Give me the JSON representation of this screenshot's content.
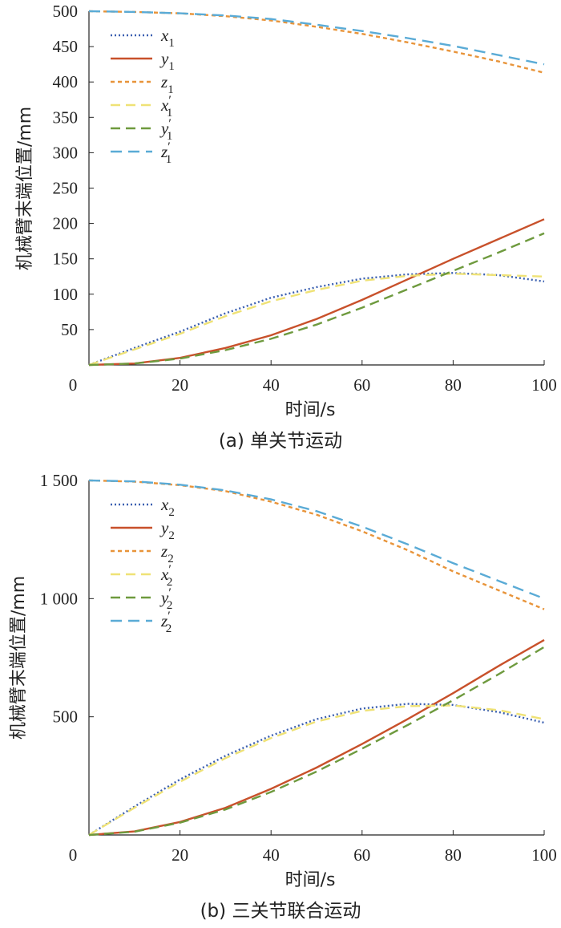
{
  "colors": {
    "x": "#3a5fb0",
    "y": "#c8512b",
    "z": "#e8943a",
    "xp": "#efe276",
    "yp": "#6e9a3e",
    "zp": "#5aabd6"
  },
  "chart_data": [
    {
      "type": "line",
      "caption": "(a)  单关节运动",
      "xlabel": "时间/s",
      "ylabel": "机械臂末端位置/mm",
      "xlim": [
        0,
        100
      ],
      "ylim": [
        0,
        500
      ],
      "xticks": [
        0,
        20,
        40,
        60,
        80,
        100
      ],
      "xtick_labels": [
        "0",
        "20",
        "40",
        "60",
        "80",
        "100"
      ],
      "yticks": [
        50,
        100,
        150,
        200,
        250,
        300,
        350,
        400,
        450,
        500
      ],
      "ytick_labels": [
        "50",
        "100",
        "150",
        "200",
        "250",
        "300",
        "350",
        "400",
        "450",
        "500"
      ],
      "legend_position": "top-left",
      "x": [
        0,
        10,
        20,
        30,
        40,
        50,
        60,
        70,
        80,
        90,
        100
      ],
      "series": [
        {
          "name": "x1",
          "base": "x",
          "sub": "1",
          "prime": false,
          "color_key": "x",
          "dash": "2,3",
          "values": [
            0,
            24,
            47,
            73,
            95,
            110,
            122,
            128,
            130,
            127,
            118
          ]
        },
        {
          "name": "y1",
          "base": "y",
          "sub": "1",
          "prime": false,
          "color_key": "y",
          "dash": "",
          "values": [
            0,
            2,
            10,
            24,
            42,
            65,
            92,
            121,
            150,
            178,
            206
          ]
        },
        {
          "name": "z1",
          "base": "z",
          "sub": "1",
          "prime": false,
          "color_key": "z",
          "dash": "5,4",
          "values": [
            500,
            499,
            497,
            493,
            487,
            478,
            468,
            456,
            443,
            429,
            413
          ]
        },
        {
          "name": "x'1",
          "base": "x",
          "sub": "1",
          "prime": true,
          "color_key": "xp",
          "dash": "12,7",
          "values": [
            0,
            22,
            44,
            69,
            90,
            106,
            119,
            126,
            129,
            127,
            125
          ]
        },
        {
          "name": "y'1",
          "base": "y",
          "sub": "1",
          "prime": true,
          "color_key": "yp",
          "dash": "12,7",
          "values": [
            0,
            2,
            9,
            21,
            37,
            57,
            81,
            107,
            133,
            159,
            186
          ]
        },
        {
          "name": "z'1",
          "base": "z",
          "sub": "1",
          "prime": true,
          "color_key": "zp",
          "dash": "14,8",
          "values": [
            500,
            499,
            497,
            494,
            489,
            481,
            472,
            462,
            451,
            438,
            425
          ]
        }
      ]
    },
    {
      "type": "line",
      "caption": "(b)  三关节联合运动",
      "xlabel": "时间/s",
      "ylabel": "机械臂末端位置/mm",
      "xlim": [
        0,
        100
      ],
      "ylim": [
        0,
        1500
      ],
      "xticks": [
        0,
        20,
        40,
        60,
        80,
        100
      ],
      "xtick_labels": [
        "0",
        "20",
        "40",
        "60",
        "80",
        "100"
      ],
      "yticks": [
        500,
        1000,
        1500
      ],
      "ytick_labels": [
        "500",
        "1 000",
        "1 500"
      ],
      "legend_position": "top-left",
      "x": [
        0,
        10,
        20,
        30,
        40,
        50,
        60,
        70,
        80,
        90,
        100
      ],
      "series": [
        {
          "name": "x2",
          "base": "x",
          "sub": "2",
          "prime": false,
          "color_key": "x",
          "dash": "2,3",
          "values": [
            0,
            120,
            235,
            335,
            420,
            490,
            535,
            555,
            550,
            520,
            475
          ]
        },
        {
          "name": "y2",
          "base": "y",
          "sub": "2",
          "prime": false,
          "color_key": "y",
          "dash": "",
          "values": [
            0,
            15,
            55,
            115,
            195,
            285,
            385,
            490,
            600,
            715,
            825
          ]
        },
        {
          "name": "z2",
          "base": "z",
          "sub": "2",
          "prime": false,
          "color_key": "z",
          "dash": "5,4",
          "values": [
            1500,
            1495,
            1480,
            1455,
            1410,
            1355,
            1285,
            1205,
            1115,
            1035,
            955
          ]
        },
        {
          "name": "x'2",
          "base": "x",
          "sub": "2",
          "prime": true,
          "color_key": "xp",
          "dash": "12,7",
          "values": [
            0,
            115,
            225,
            325,
            410,
            480,
            525,
            545,
            548,
            528,
            490
          ]
        },
        {
          "name": "y'2",
          "base": "y",
          "sub": "2",
          "prime": true,
          "color_key": "yp",
          "dash": "12,7",
          "values": [
            0,
            14,
            52,
            108,
            182,
            268,
            365,
            465,
            570,
            680,
            795
          ]
        },
        {
          "name": "z'2",
          "base": "z",
          "sub": "2",
          "prime": true,
          "color_key": "zp",
          "dash": "14,8",
          "values": [
            1500,
            1496,
            1482,
            1458,
            1420,
            1370,
            1305,
            1230,
            1150,
            1075,
            1000
          ]
        }
      ]
    }
  ]
}
